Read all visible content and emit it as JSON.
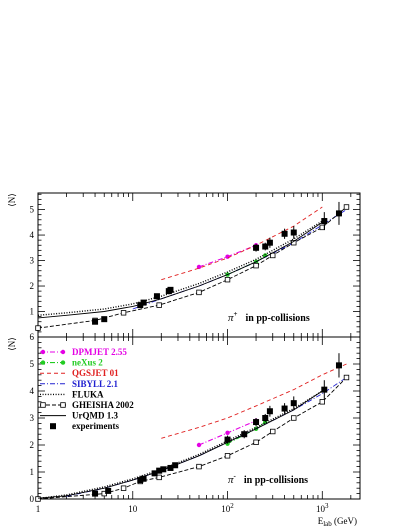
{
  "chart_data": [
    {
      "type": "line",
      "panel": "top",
      "ylabel": "⟨N⟩",
      "xscale": "log",
      "xlim": [
        1,
        2500
      ],
      "ylim": [
        0,
        6
      ],
      "y_ticks": [
        "0",
        "1",
        "2",
        "3",
        "4",
        "5"
      ],
      "annotation": {
        "particle": "π",
        "charge": "+",
        "text": "in pp-collisions"
      },
      "series": [
        {
          "name": "DPMJET 2.55",
          "color": "#e400e4",
          "style": "dash-dot-marker",
          "x": [
            50,
            100,
            200
          ],
          "y": [
            2.75,
            3.15,
            3.6
          ]
        },
        {
          "name": "neXus 2",
          "color": "#22cc22",
          "style": "dash-dot-marker",
          "x": [
            100,
            200,
            250
          ],
          "y": [
            2.45,
            2.95,
            3.2
          ]
        },
        {
          "name": "QGSJET 01",
          "color": "#e02020",
          "style": "dashed",
          "x": [
            20,
            50,
            100,
            200,
            500,
            1000
          ],
          "y": [
            2.25,
            2.7,
            3.1,
            3.6,
            4.35,
            5.1
          ]
        },
        {
          "name": "SIBYLL 2.1",
          "color": "#2020d0",
          "style": "dash-dot",
          "x": [
            10,
            20,
            50,
            100,
            200,
            500,
            1000,
            1800
          ],
          "y": [
            1.1,
            1.5,
            2.0,
            2.45,
            2.95,
            3.7,
            4.4,
            5.0
          ]
        },
        {
          "name": "FLUKA",
          "color": "#000000",
          "style": "dotted",
          "x": [
            1,
            2,
            5,
            10,
            20,
            50,
            100,
            200,
            500,
            1000
          ],
          "y": [
            0.85,
            0.95,
            1.1,
            1.3,
            1.6,
            2.1,
            2.55,
            3.05,
            3.85,
            4.55
          ]
        },
        {
          "name": "GHEISHA 2002",
          "color": "#000000",
          "style": "dashed-open-square",
          "x": [
            1,
            4,
            8,
            19,
            50,
            100,
            200,
            300,
            500,
            1000,
            1800
          ],
          "y": [
            0.35,
            0.65,
            0.95,
            1.25,
            1.75,
            2.25,
            2.8,
            3.2,
            3.7,
            4.3,
            5.1
          ]
        },
        {
          "name": "UrQMD 1.3",
          "color": "#000000",
          "style": "solid",
          "x": [
            1,
            2,
            5,
            10,
            20,
            50,
            100,
            200,
            500,
            1000
          ],
          "y": [
            0.75,
            0.85,
            1.0,
            1.2,
            1.5,
            2.0,
            2.45,
            2.95,
            3.75,
            4.5
          ]
        },
        {
          "name": "experiments",
          "color": "#000000",
          "style": "filled-square-errorbar",
          "x": [
            4,
            5,
            12,
            13,
            18,
            24,
            25,
            200,
            250,
            280,
            400,
            500,
            1050,
            1500
          ],
          "y": [
            0.6,
            0.7,
            1.25,
            1.35,
            1.6,
            1.8,
            1.85,
            3.5,
            3.55,
            3.7,
            4.05,
            4.1,
            4.55,
            4.85
          ],
          "err": [
            0.05,
            0.05,
            0.1,
            0.1,
            0.1,
            0.1,
            0.1,
            0.15,
            0.15,
            0.2,
            0.2,
            0.25,
            0.35,
            0.45
          ]
        }
      ]
    },
    {
      "type": "line",
      "panel": "bottom",
      "xlabel": "E_lab (GeV)",
      "ylabel": "⟨N⟩",
      "xscale": "log",
      "xlim": [
        1,
        2500
      ],
      "ylim": [
        0,
        6
      ],
      "x_ticks": [
        {
          "value": 1,
          "base": "1",
          "exp": ""
        },
        {
          "value": 10,
          "base": "10",
          "exp": ""
        },
        {
          "value": 100,
          "base": "10",
          "exp": "2"
        },
        {
          "value": 1000,
          "base": "10",
          "exp": "3"
        }
      ],
      "y_ticks": [
        "0",
        "1",
        "2",
        "3",
        "4",
        "5",
        "6"
      ],
      "annotation": {
        "particle": "π",
        "charge": "-",
        "text": "in pp-collisions"
      },
      "legend": {
        "placement": "upper-left",
        "entries": [
          {
            "label": "DPMJET 2.55",
            "color": "#e400e4",
            "style": "dash-dot-marker"
          },
          {
            "label": "neXus 2",
            "color": "#22cc22",
            "style": "dash-dot-marker"
          },
          {
            "label": "QGSJET 01",
            "color": "#e02020",
            "style": "dashed"
          },
          {
            "label": "SIBYLL 2.1",
            "color": "#2020d0",
            "style": "dash-dot"
          },
          {
            "label": "FLUKA",
            "color": "#000000",
            "style": "dotted"
          },
          {
            "label": "GHEISHA 2002",
            "color": "#000000",
            "style": "dashed-open-square"
          },
          {
            "label": "UrQMD 1.3",
            "color": "#000000",
            "style": "solid"
          },
          {
            "label": "experiments",
            "color": "#000000",
            "style": "filled-square"
          }
        ]
      },
      "series": [
        {
          "name": "DPMJET 2.55",
          "color": "#e400e4",
          "style": "dash-dot-marker",
          "x": [
            50,
            100,
            200
          ],
          "y": [
            2.0,
            2.45,
            2.9
          ]
        },
        {
          "name": "neXus 2",
          "color": "#22cc22",
          "style": "dash-dot-marker",
          "x": [
            100,
            200,
            250
          ],
          "y": [
            2.05,
            2.6,
            2.85
          ]
        },
        {
          "name": "QGSJET 01",
          "color": "#e02020",
          "style": "dashed",
          "x": [
            20,
            50,
            100,
            200,
            500,
            1000,
            1800
          ],
          "y": [
            2.25,
            2.65,
            3.0,
            3.45,
            4.05,
            4.6,
            5.0
          ]
        },
        {
          "name": "SIBYLL 2.1",
          "color": "#2020d0",
          "style": "dash-dot",
          "x": [
            2,
            5,
            10,
            20,
            50,
            100,
            200,
            500,
            1000,
            1800
          ],
          "y": [
            0.1,
            0.4,
            0.7,
            1.05,
            1.6,
            2.1,
            2.6,
            3.3,
            3.9,
            4.5
          ]
        },
        {
          "name": "FLUKA",
          "color": "#000000",
          "style": "dotted",
          "x": [
            1,
            2,
            5,
            10,
            20,
            50,
            100,
            200,
            500,
            1000
          ],
          "y": [
            0.02,
            0.15,
            0.45,
            0.75,
            1.1,
            1.65,
            2.15,
            2.65,
            3.35,
            4.0
          ]
        },
        {
          "name": "GHEISHA 2002",
          "color": "#000000",
          "style": "dashed-open-square",
          "x": [
            1,
            5,
            8,
            12,
            19,
            50,
            100,
            200,
            300,
            500,
            1000,
            1800
          ],
          "y": [
            0.0,
            0.2,
            0.4,
            0.65,
            0.8,
            1.2,
            1.6,
            2.1,
            2.5,
            3.0,
            3.6,
            4.5
          ]
        },
        {
          "name": "UrQMD 1.3",
          "color": "#000000",
          "style": "solid",
          "x": [
            1,
            2,
            5,
            10,
            20,
            50,
            100,
            200,
            500,
            1000
          ],
          "y": [
            0.03,
            0.12,
            0.4,
            0.7,
            1.05,
            1.6,
            2.1,
            2.6,
            3.3,
            4.0
          ]
        },
        {
          "name": "experiments",
          "color": "#000000",
          "style": "filled-square-errorbar",
          "x": [
            4,
            5.5,
            12,
            13,
            17,
            19,
            21,
            25,
            28,
            100,
            150,
            200,
            250,
            280,
            400,
            500,
            1050,
            1500
          ],
          "y": [
            0.2,
            0.3,
            0.7,
            0.75,
            0.95,
            1.05,
            1.1,
            1.15,
            1.25,
            2.2,
            2.4,
            2.85,
            3.0,
            3.25,
            3.35,
            3.55,
            4.05,
            4.95
          ],
          "err": [
            0.05,
            0.05,
            0.08,
            0.08,
            0.08,
            0.08,
            0.08,
            0.08,
            0.08,
            0.15,
            0.15,
            0.15,
            0.15,
            0.2,
            0.2,
            0.25,
            0.35,
            0.45
          ]
        }
      ]
    }
  ]
}
